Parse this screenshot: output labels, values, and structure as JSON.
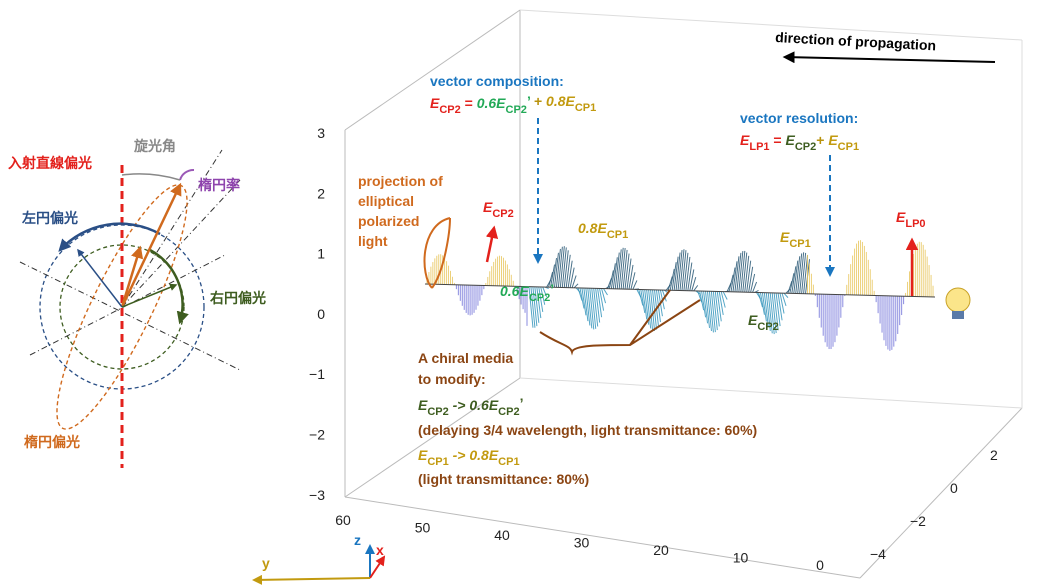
{
  "left": {
    "rotation_angle": "旋光角",
    "incident_linear": "入射直線偏光",
    "ellipticity": "楕円率",
    "left_circular": "左円偏光",
    "right_circular": "右円偏光",
    "elliptical": "楕円偏光"
  },
  "right": {
    "propagation": "direction of propagation",
    "composition": {
      "title": "vector composition:",
      "equation": [
        {
          "main": "E",
          "sub": "CP2",
          "color": "#e3211c"
        },
        {
          "main": " =  ",
          "color": "#e3211c"
        },
        {
          "main": "0.6E",
          "sub": "CP2",
          "prime": "’",
          "color": "#22a957"
        },
        {
          "main": " + ",
          "color": "#b8920c"
        },
        {
          "main": "0.8E",
          "sub": "CP1",
          "color": "#c29a0f"
        }
      ]
    },
    "resolution": {
      "title": "vector resolution:",
      "equation": [
        {
          "main": "E",
          "sub": "LP1",
          "color": "#e3211c"
        },
        {
          "main": " =  ",
          "color": "#e3211c"
        },
        {
          "main": "E",
          "sub": "CP2",
          "color": "#3e5d20"
        },
        {
          "main": "+ ",
          "color": "#b8920c"
        },
        {
          "main": "E",
          "sub": "CP1",
          "color": "#c29a0f"
        }
      ]
    },
    "projection": [
      "projection of",
      "elliptical",
      "polarized",
      "light"
    ],
    "wave_labels": [
      [
        {
          "main": "E",
          "sub": "CP2",
          "color": "#e3211c"
        }
      ],
      [
        {
          "main": "0.8E",
          "sub": "CP1",
          "color": "#c29a0f"
        }
      ],
      [
        {
          "main": "0.6E",
          "sub": "CP2",
          "prime": "’",
          "color": "#22a957"
        }
      ],
      [
        {
          "main": "E",
          "sub": "CP1",
          "color": "#c29a0f"
        }
      ],
      [
        {
          "main": "E",
          "sub": "LP0",
          "color": "#e3211c"
        }
      ],
      [
        {
          "main": "E",
          "sub": "CP2",
          "color": "#3e5d20"
        }
      ]
    ],
    "chiral": {
      "lines": [
        "A chiral media",
        "to modify:"
      ],
      "rule1": [
        {
          "main": "E",
          "sub": "CP2",
          "color": "#3e5d20"
        },
        {
          "main": " -> 0.6E",
          "color": "#3e5d20"
        },
        {
          "main": "",
          "sub": "CP2",
          "prime": "’",
          "color": "#3e5d20"
        }
      ],
      "note1": "(delaying 3/4 wavelength, light transmittance: 60%)",
      "rule2": [
        {
          "main": "E",
          "sub": "CP1",
          "color": "#c29a0f"
        },
        {
          "main": " -> 0.8E",
          "color": "#c29a0f"
        },
        {
          "main": "",
          "sub": "CP1",
          "color": "#c29a0f"
        }
      ],
      "note2": "(light transmittance: 80%)"
    },
    "axes": {
      "z_ticks": [
        "3",
        "2",
        "1",
        "0",
        "−1",
        "−2",
        "−3"
      ],
      "x_ticks": [
        "60",
        "50",
        "40",
        "30",
        "20",
        "10",
        "0"
      ],
      "y_ticks": [
        "2",
        "0",
        "−2",
        "−4"
      ],
      "x_label": "x",
      "y_label": "y",
      "z_label": "z"
    }
  }
}
